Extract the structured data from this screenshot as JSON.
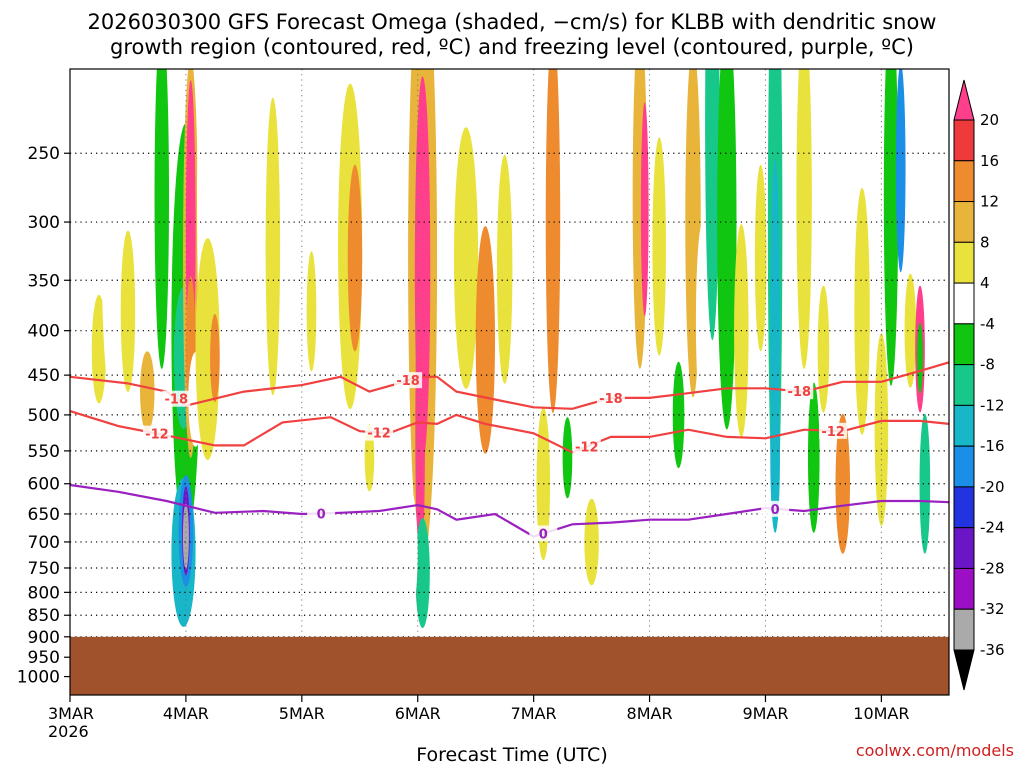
{
  "chart_data": {
    "type": "heatmap",
    "title_line1": "2026030300 GFS Forecast Omega (shaded, −cm/s) for KLBB with dendritic snow",
    "title_line2": "growth region (contoured, red, ºC) and freezing level (contoured, purple, ºC)",
    "xlabel": "Forecast Time (UTC)",
    "credit": "coolwx.com/models",
    "y_scale": "log-pressure",
    "ylim": [
      200,
      1050
    ],
    "y_ticks": [
      "250",
      "300",
      "350",
      "400",
      "450",
      "500",
      "550",
      "600",
      "650",
      "700",
      "750",
      "800",
      "850",
      "900",
      "950",
      "1000"
    ],
    "x_ticks": [
      {
        "label": "3MAR",
        "sublabel": "2026",
        "hour": 0
      },
      {
        "label": "4MAR",
        "sublabel": "",
        "hour": 24
      },
      {
        "label": "5MAR",
        "sublabel": "",
        "hour": 48
      },
      {
        "label": "6MAR",
        "sublabel": "",
        "hour": 72
      },
      {
        "label": "7MAR",
        "sublabel": "",
        "hour": 96
      },
      {
        "label": "8MAR",
        "sublabel": "",
        "hour": 120
      },
      {
        "label": "9MAR",
        "sublabel": "",
        "hour": 144
      },
      {
        "label": "10MAR",
        "sublabel": "",
        "hour": 168
      }
    ],
    "xlim_hours": [
      0,
      182
    ],
    "grid": true,
    "surface_pressure": 900,
    "colorbar": {
      "labels": [
        "20",
        "16",
        "12",
        "8",
        "4",
        "-4",
        "-8",
        "-12",
        "-16",
        "-20",
        "-24",
        "-28",
        "-32",
        "-36"
      ],
      "colors": [
        "#ff3e8c",
        "#ee3a3a",
        "#ee8b2e",
        "#e8b43a",
        "#e9e23c",
        "#ffffff",
        "#10c610",
        "#18c88a",
        "#17b6c8",
        "#1b8ee8",
        "#2233e0",
        "#6a16c6",
        "#9c0fc4",
        "#aaaaaa",
        "#000000"
      ]
    },
    "series": [
      {
        "name": "-18",
        "color": "#f04040",
        "hours": [
          0,
          12,
          20,
          24,
          36,
          48,
          56,
          62,
          68,
          72,
          76,
          80,
          88,
          96,
          104,
          112,
          120,
          128,
          136,
          144,
          152,
          160,
          168,
          176,
          182
        ],
        "pressure": [
          452,
          460,
          470,
          488,
          470,
          462,
          452,
          470,
          460,
          452,
          452,
          470,
          480,
          490,
          492,
          478,
          478,
          472,
          466,
          466,
          470,
          458,
          458,
          445,
          435
        ],
        "label_hours": [
          22,
          70,
          112,
          151
        ]
      },
      {
        "name": "-12",
        "color": "#f04040",
        "hours": [
          0,
          10,
          20,
          30,
          36,
          44,
          54,
          60,
          66,
          72,
          76,
          80,
          86,
          96,
          104,
          112,
          120,
          128,
          136,
          144,
          152,
          160,
          168,
          176,
          182
        ],
        "pressure": [
          495,
          515,
          528,
          542,
          542,
          510,
          503,
          522,
          525,
          510,
          512,
          500,
          512,
          525,
          552,
          530,
          530,
          520,
          530,
          532,
          520,
          522,
          508,
          508,
          512
        ],
        "label_hours": [
          18,
          64,
          107,
          158
        ]
      },
      {
        "name": "0",
        "color": "#9a20c0",
        "hours": [
          0,
          10,
          20,
          30,
          40,
          48,
          56,
          64,
          72,
          76,
          80,
          88,
          96,
          104,
          112,
          120,
          128,
          136,
          144,
          152,
          160,
          168,
          176,
          182
        ],
        "pressure": [
          602,
          613,
          628,
          648,
          645,
          650,
          648,
          645,
          635,
          642,
          660,
          650,
          690,
          668,
          665,
          660,
          660,
          650,
          640,
          645,
          636,
          628,
          628,
          630
        ],
        "label_hours": [
          52,
          98,
          146
        ]
      }
    ]
  }
}
